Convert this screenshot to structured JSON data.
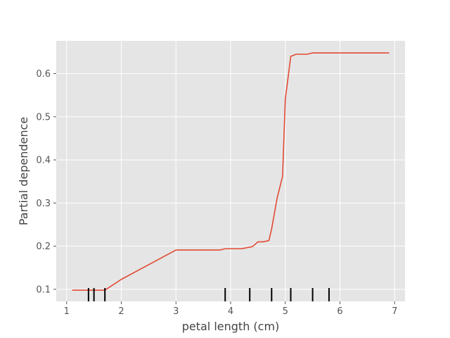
{
  "chart_data": {
    "type": "line",
    "title": "",
    "xlabel": "petal length (cm)",
    "ylabel": "Partial dependence",
    "xlim": [
      0.81,
      7.19
    ],
    "ylim": [
      0.072,
      0.676
    ],
    "xticks": [
      1,
      2,
      3,
      4,
      5,
      6,
      7
    ],
    "yticks": [
      0.1,
      0.2,
      0.3,
      0.4,
      0.5,
      0.6
    ],
    "ytick_labels": [
      "0.1",
      "0.2",
      "0.3",
      "0.4",
      "0.5",
      "0.6"
    ],
    "grid": true,
    "background": "#e5e5e5",
    "line_color": "#e24a33",
    "rug_color": "#000000",
    "series": [
      {
        "x": [
          1.1,
          1.6,
          1.7,
          2.0,
          2.5,
          3.0,
          3.5,
          3.8,
          3.9,
          4.2,
          4.4,
          4.5,
          4.6,
          4.7,
          4.75,
          4.85,
          4.95,
          5.0,
          5.1,
          5.2,
          5.4,
          5.5,
          6.0,
          6.5,
          6.9
        ],
        "y": [
          0.098,
          0.098,
          0.098,
          0.123,
          0.157,
          0.191,
          0.191,
          0.191,
          0.194,
          0.194,
          0.199,
          0.21,
          0.21,
          0.213,
          0.24,
          0.311,
          0.362,
          0.54,
          0.64,
          0.645,
          0.645,
          0.648,
          0.648,
          0.648,
          0.648
        ]
      }
    ],
    "deciles": [
      1.4,
      1.5,
      1.7,
      3.9,
      4.35,
      4.75,
      5.1,
      5.5,
      5.8
    ]
  }
}
